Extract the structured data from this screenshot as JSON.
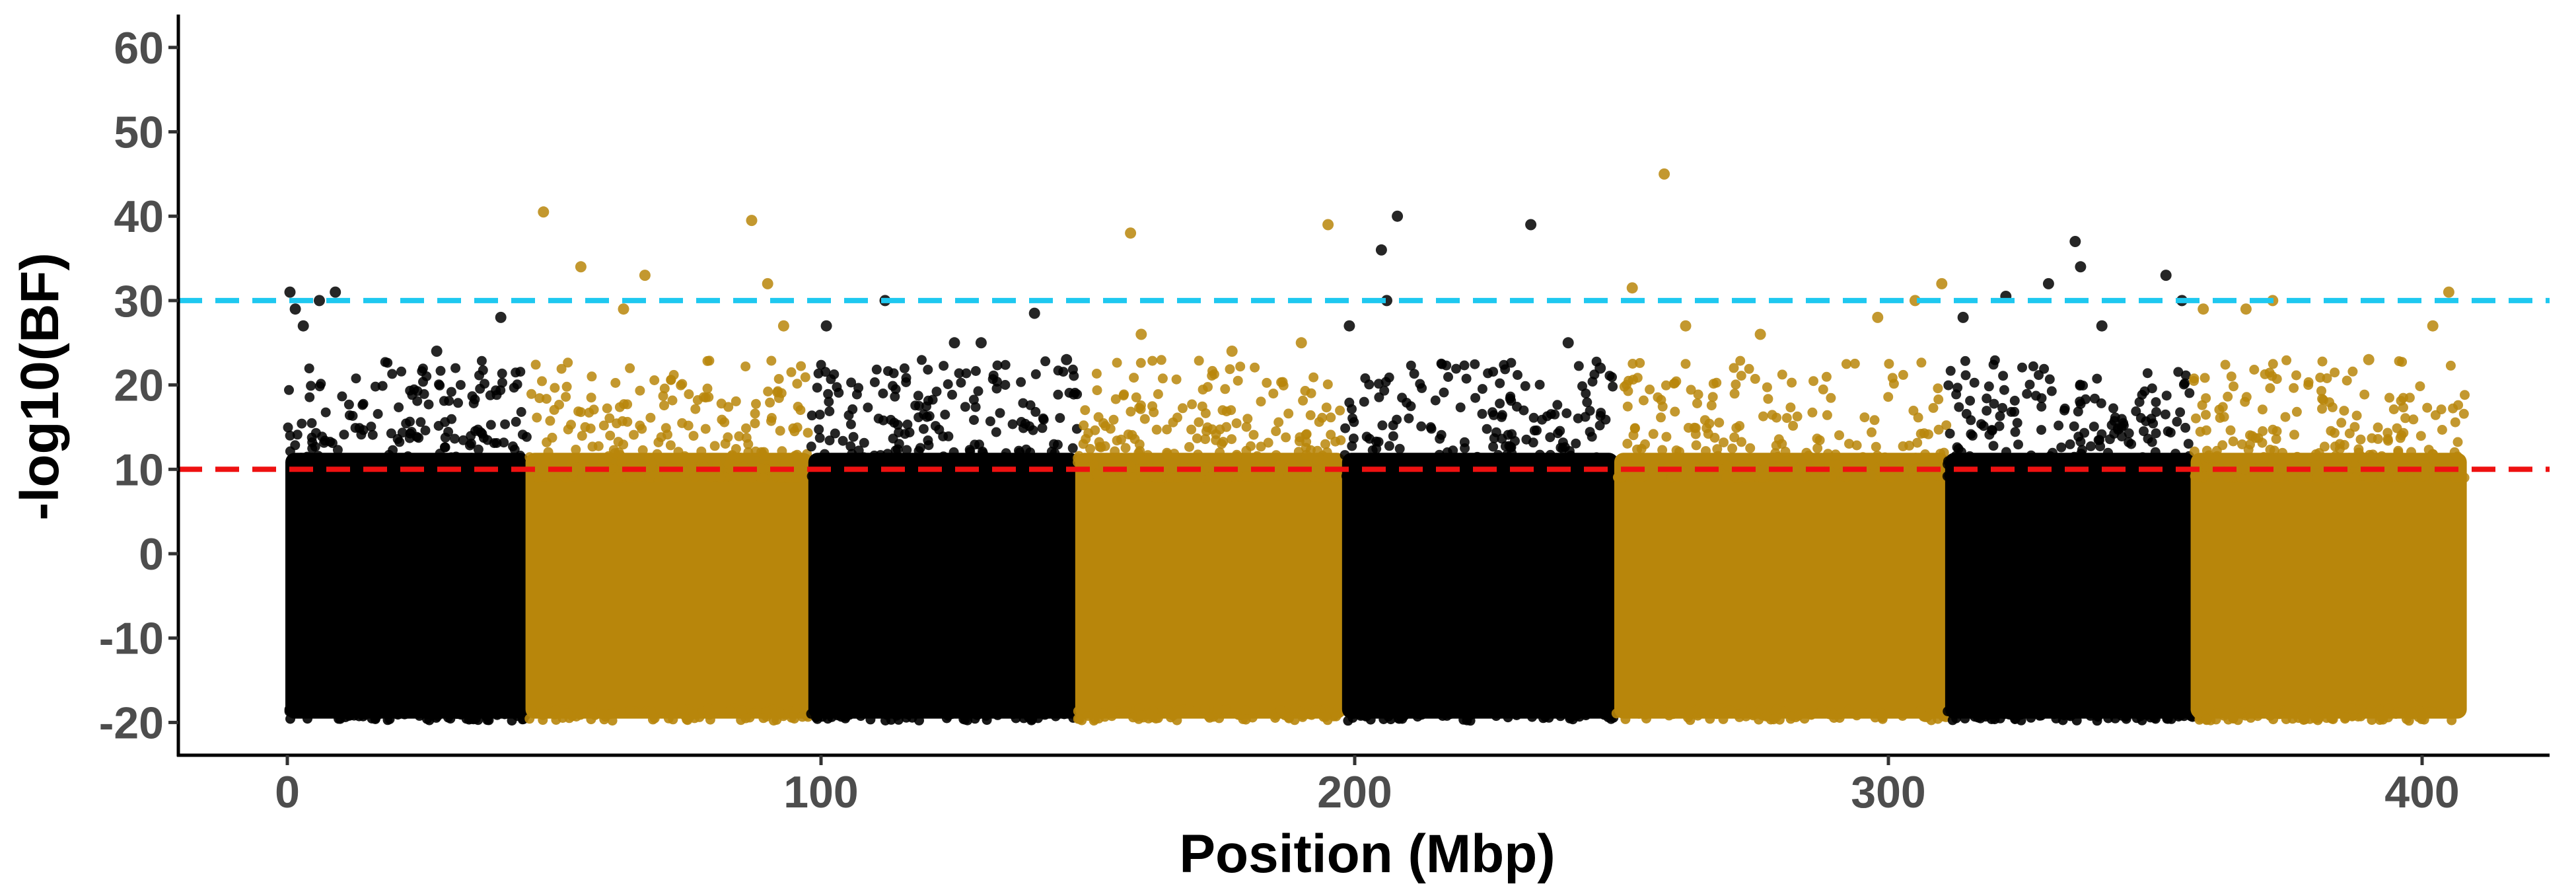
{
  "chart_data": {
    "type": "scatter",
    "subtype": "manhattan",
    "title": "",
    "xlabel": "Position (Mbp)",
    "ylabel": "-log10(BF)",
    "xlim": [
      -20,
      420
    ],
    "ylim": [
      -24,
      64
    ],
    "xticks": [
      0,
      100,
      200,
      300,
      400
    ],
    "yticks": [
      -20,
      -10,
      0,
      10,
      20,
      30,
      40,
      50,
      60
    ],
    "grid": false,
    "legend": "none",
    "thresholds": [
      {
        "value": 30,
        "color": "#1ec8f0",
        "style": "dashed"
      },
      {
        "value": 10,
        "color": "#ee1111",
        "style": "dashed"
      }
    ],
    "colors": {
      "odd_chromosome": "#000000",
      "even_chromosome": "#b8860b"
    },
    "series": [
      {
        "chromosome": 1,
        "start": 0,
        "end": 45,
        "color": "#000000",
        "outliers": [
          [
            0.5,
            31
          ],
          [
            1.5,
            29
          ],
          [
            3,
            27
          ],
          [
            6,
            30
          ],
          [
            9,
            31
          ],
          [
            28,
            24
          ],
          [
            40,
            28
          ]
        ]
      },
      {
        "chromosome": 2,
        "start": 45,
        "end": 98,
        "color": "#b8860b",
        "outliers": [
          [
            48,
            40.5
          ],
          [
            55,
            34
          ],
          [
            63,
            29
          ],
          [
            67,
            33
          ],
          [
            87,
            39.5
          ],
          [
            90,
            32
          ],
          [
            93,
            27
          ]
        ]
      },
      {
        "chromosome": 3,
        "start": 98,
        "end": 148,
        "color": "#000000",
        "outliers": [
          [
            101,
            27
          ],
          [
            112,
            30
          ],
          [
            125,
            25
          ],
          [
            130,
            25
          ],
          [
            140,
            28.5
          ],
          [
            146,
            23
          ]
        ]
      },
      {
        "chromosome": 4,
        "start": 148,
        "end": 198,
        "color": "#b8860b",
        "outliers": [
          [
            158,
            38
          ],
          [
            160,
            26
          ],
          [
            177,
            24
          ],
          [
            190,
            25
          ],
          [
            195,
            39
          ]
        ]
      },
      {
        "chromosome": 5,
        "start": 198,
        "end": 249,
        "color": "#000000",
        "outliers": [
          [
            199,
            27
          ],
          [
            205,
            36
          ],
          [
            206,
            30
          ],
          [
            208,
            40
          ],
          [
            233,
            39
          ],
          [
            240,
            25
          ],
          [
            246,
            22
          ]
        ]
      },
      {
        "chromosome": 6,
        "start": 249,
        "end": 311,
        "color": "#b8860b",
        "outliers": [
          [
            252,
            31.5
          ],
          [
            258,
            45
          ],
          [
            262,
            27
          ],
          [
            276,
            26
          ],
          [
            298,
            28
          ],
          [
            305,
            30
          ],
          [
            310,
            32
          ]
        ]
      },
      {
        "chromosome": 7,
        "start": 311,
        "end": 357,
        "color": "#000000",
        "outliers": [
          [
            314,
            28
          ],
          [
            322,
            30.5
          ],
          [
            330,
            32
          ],
          [
            335,
            37
          ],
          [
            336,
            34
          ],
          [
            340,
            27
          ],
          [
            352,
            33
          ],
          [
            355,
            30
          ]
        ]
      },
      {
        "chromosome": 8,
        "start": 357,
        "end": 408,
        "color": "#b8860b",
        "outliers": [
          [
            359,
            29
          ],
          [
            367,
            29
          ],
          [
            372,
            30
          ],
          [
            390,
            23
          ],
          [
            402,
            27
          ],
          [
            405,
            31
          ]
        ]
      }
    ]
  }
}
